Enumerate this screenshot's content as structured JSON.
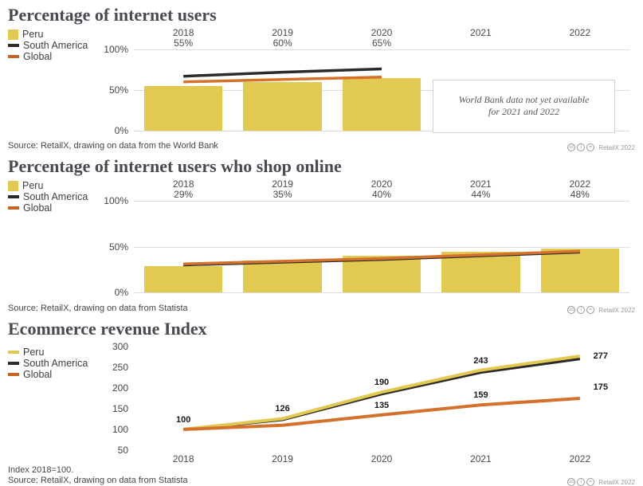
{
  "branding": {
    "cc_text": "RetailX 2022"
  },
  "colors": {
    "peru": "#e2c951",
    "south_america": "#2b2b2b",
    "global": "#d4722c",
    "global_swatch": "#c8641e",
    "gridline": "#dcdcdc"
  },
  "chart_data": [
    {
      "type": "bar",
      "title": "Percentage of internet users",
      "categories": [
        "2018",
        "2019",
        "2020",
        "2021",
        "2022"
      ],
      "y_ticks": [
        "100%",
        "50%",
        "0%"
      ],
      "ylim": [
        0,
        100
      ],
      "grid": true,
      "legend_position": "left",
      "bar_series": {
        "name": "Peru",
        "color": "#e2c951",
        "values": [
          55,
          60,
          65,
          null,
          null
        ]
      },
      "bar_value_labels": [
        "55%",
        "60%",
        "65%",
        "",
        ""
      ],
      "line_series": [
        {
          "name": "South America",
          "color": "#2b2b2b",
          "values": [
            67,
            72,
            76,
            null,
            null
          ]
        },
        {
          "name": "Global",
          "color": "#d4722c",
          "values": [
            60,
            63,
            66,
            null,
            null
          ]
        }
      ],
      "note": "World Bank data not yet available for 2021 and 2022",
      "source": "Source: RetailX, drawing on data from the World Bank"
    },
    {
      "type": "bar",
      "title": "Percentage of internet users who shop online",
      "categories": [
        "2018",
        "2019",
        "2020",
        "2021",
        "2022"
      ],
      "y_ticks": [
        "100%",
        "50%",
        "0%"
      ],
      "ylim": [
        0,
        100
      ],
      "grid": true,
      "legend_position": "left",
      "bar_series": {
        "name": "Peru",
        "color": "#e2c951",
        "values": [
          29,
          35,
          40,
          44,
          48
        ]
      },
      "bar_value_labels": [
        "29%",
        "35%",
        "40%",
        "44%",
        "48%"
      ],
      "line_series": [
        {
          "name": "South America",
          "color": "#2b2b2b",
          "values": [
            30,
            33,
            36,
            40,
            44
          ]
        },
        {
          "name": "Global",
          "color": "#d4722c",
          "values": [
            31,
            34,
            37,
            41,
            45
          ]
        }
      ],
      "source": "Source: RetailX, drawing on data from Statista"
    },
    {
      "type": "line",
      "title": "Ecommerce revenue Index",
      "categories": [
        "2018",
        "2019",
        "2020",
        "2021",
        "2022"
      ],
      "y_ticks": [
        "300",
        "250",
        "200",
        "150",
        "100",
        "50"
      ],
      "ylim": [
        50,
        300
      ],
      "grid": false,
      "legend_position": "left",
      "series": [
        {
          "name": "South America",
          "color": "#2b2b2b",
          "values": [
            100,
            124,
            186,
            238,
            271
          ],
          "labels": [
            "",
            "",
            "",
            "",
            ""
          ]
        },
        {
          "name": "Peru",
          "color": "#e2c951",
          "values": [
            100,
            126,
            190,
            243,
            277
          ],
          "labels": [
            "100",
            "126",
            "190",
            "243",
            "277"
          ]
        },
        {
          "name": "Global",
          "color": "#d4722c",
          "values": [
            100,
            110,
            135,
            159,
            175
          ],
          "labels": [
            "",
            "",
            "135",
            "159",
            "175"
          ]
        }
      ],
      "footnote": "Index 2018=100.",
      "source": "Source: RetailX, drawing on data from Statista"
    }
  ]
}
